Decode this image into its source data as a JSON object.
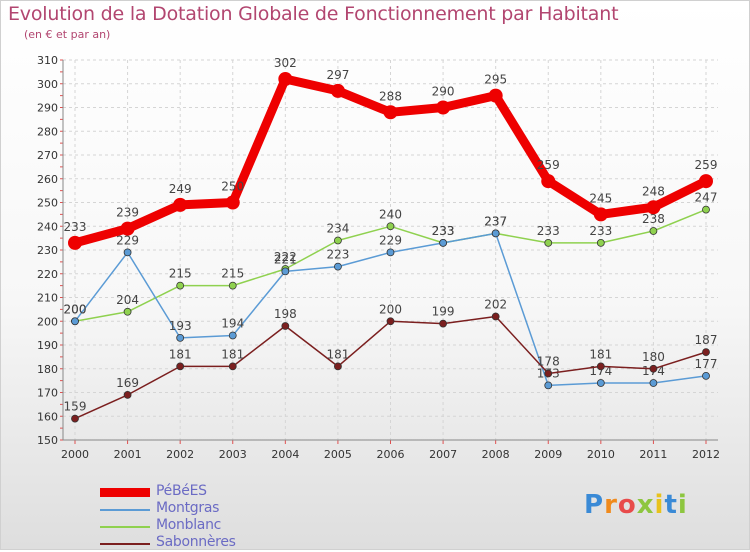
{
  "header": {
    "title": "Evolution de la Dotation Globale de Fonctionnement par Habitant",
    "subtitle": "(en € et par an)"
  },
  "logo": {
    "text": "Proxiti",
    "letters": [
      "P",
      "r",
      "o",
      "x",
      "i",
      "t",
      "i"
    ]
  },
  "colors": {
    "pebees": "#ee0000",
    "montgras": "#5b9bd5",
    "monblanc": "#8fd14f",
    "sabonneres": "#7b1f1f",
    "grid": "#d5d5d5",
    "title": "#b24670",
    "legend_text": "#6b6bc4"
  },
  "chart_data": {
    "type": "line",
    "title": "Evolution de la Dotation Globale de Fonctionnement par Habitant",
    "subtitle": "(en € et par an)",
    "xlabel": "",
    "ylabel": "",
    "ylim": [
      150,
      310
    ],
    "yticks": [
      150,
      160,
      170,
      180,
      190,
      200,
      210,
      220,
      230,
      240,
      250,
      260,
      270,
      280,
      290,
      300,
      310
    ],
    "grid": true,
    "legend_position": "bottom-left",
    "x": [
      "2000",
      "2001",
      "2002",
      "2003",
      "2004",
      "2005",
      "2006",
      "2007",
      "2008",
      "2009",
      "2010",
      "2011",
      "2012"
    ],
    "series": [
      {
        "name": "Monblanc",
        "key": "monblanc",
        "values": [
          200,
          204,
          215,
          215,
          222,
          234,
          240,
          233,
          237,
          233,
          233,
          238,
          247
        ]
      },
      {
        "name": "Montgras",
        "key": "montgras",
        "values": [
          200,
          229,
          193,
          194,
          221,
          223,
          229,
          233,
          237,
          173,
          174,
          174,
          177
        ]
      },
      {
        "name": "Sabonnères",
        "key": "sabonneres",
        "values": [
          159,
          169,
          181,
          181,
          198,
          181,
          200,
          199,
          202,
          178,
          181,
          180,
          187
        ]
      },
      {
        "name": "PéBéES",
        "key": "pebees",
        "values": [
          233,
          239,
          249,
          250,
          302,
          297,
          288,
          290,
          295,
          259,
          245,
          248,
          259
        ]
      }
    ],
    "data_labels": {
      "pebees": [
        "233",
        "239",
        "249",
        "250",
        "302",
        "297",
        "288",
        "290",
        "295",
        "259",
        "245",
        "248",
        "259"
      ],
      "montgras": [
        "200",
        "229",
        "193",
        "194",
        "221",
        "223",
        "229",
        "233",
        "237",
        "173",
        "174",
        "174",
        "177"
      ],
      "monblanc": [
        "200",
        "204",
        "215",
        "215",
        "222",
        "234",
        "240",
        "233",
        "237",
        "233",
        "233",
        "238",
        "247"
      ],
      "sabonneres": [
        "159",
        "169",
        "181",
        "181",
        "198",
        "181",
        "200",
        "199",
        "202",
        "178",
        "181",
        "180",
        "187"
      ]
    }
  },
  "legend": [
    {
      "key": "pebees",
      "label": "PéBéES"
    },
    {
      "key": "montgras",
      "label": "Montgras"
    },
    {
      "key": "monblanc",
      "label": "Monblanc"
    },
    {
      "key": "sabonneres",
      "label": "Sabonnères"
    }
  ]
}
